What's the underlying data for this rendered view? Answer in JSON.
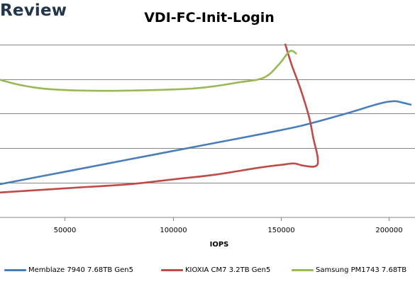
{
  "brand": "Review",
  "chart_data": {
    "type": "line",
    "title": "VDI-FC-Init-Login",
    "xlabel": "IOPS",
    "ylabel": "",
    "xlim": [
      20000,
      212000
    ],
    "ylim": [
      0,
      3.04
    ],
    "x_ticks": [
      50000,
      100000,
      150000,
      200000
    ],
    "x_tick_labels": [
      "50000",
      "100000",
      "150000",
      "200000"
    ],
    "y_gridlines": [
      0.5,
      1.0,
      1.5,
      2.0,
      2.5
    ],
    "y_tick_labels_visible": false,
    "grid": "horizontal",
    "legend": "bottom",
    "series": [
      {
        "name": "Memblaze 7940 7.68TB Gen5",
        "color": "#4a7ebb",
        "points": [
          [
            20000,
            0.48
          ],
          [
            40000,
            0.6
          ],
          [
            60000,
            0.72
          ],
          [
            80000,
            0.84
          ],
          [
            100000,
            0.96
          ],
          [
            120000,
            1.08
          ],
          [
            140000,
            1.2
          ],
          [
            160000,
            1.33
          ],
          [
            180000,
            1.5
          ],
          [
            195000,
            1.64
          ],
          [
            202000,
            1.68
          ],
          [
            206000,
            1.66
          ],
          [
            210000,
            1.63
          ]
        ]
      },
      {
        "name": "KIOXIA CM7 3.2TB Gen5",
        "color": "#be4b48",
        "points": [
          [
            20000,
            0.36
          ],
          [
            40000,
            0.4
          ],
          [
            60000,
            0.44
          ],
          [
            80000,
            0.48
          ],
          [
            100000,
            0.55
          ],
          [
            120000,
            0.62
          ],
          [
            140000,
            0.72
          ],
          [
            150000,
            0.76
          ],
          [
            156000,
            0.78
          ],
          [
            160000,
            0.75
          ],
          [
            166000,
            0.74
          ],
          [
            167000,
            0.86
          ],
          [
            165000,
            1.14
          ],
          [
            163000,
            1.45
          ],
          [
            159000,
            1.86
          ],
          [
            155000,
            2.2
          ],
          [
            152000,
            2.5
          ]
        ]
      },
      {
        "name": "Samsung PM1743 7.68TB",
        "color": "#98b954",
        "points": [
          [
            20000,
            1.99
          ],
          [
            30000,
            1.91
          ],
          [
            45000,
            1.85
          ],
          [
            70000,
            1.83
          ],
          [
            100000,
            1.85
          ],
          [
            115000,
            1.88
          ],
          [
            130000,
            1.95
          ],
          [
            142000,
            2.02
          ],
          [
            149000,
            2.21
          ],
          [
            154000,
            2.4
          ],
          [
            157000,
            2.37
          ]
        ]
      }
    ]
  }
}
